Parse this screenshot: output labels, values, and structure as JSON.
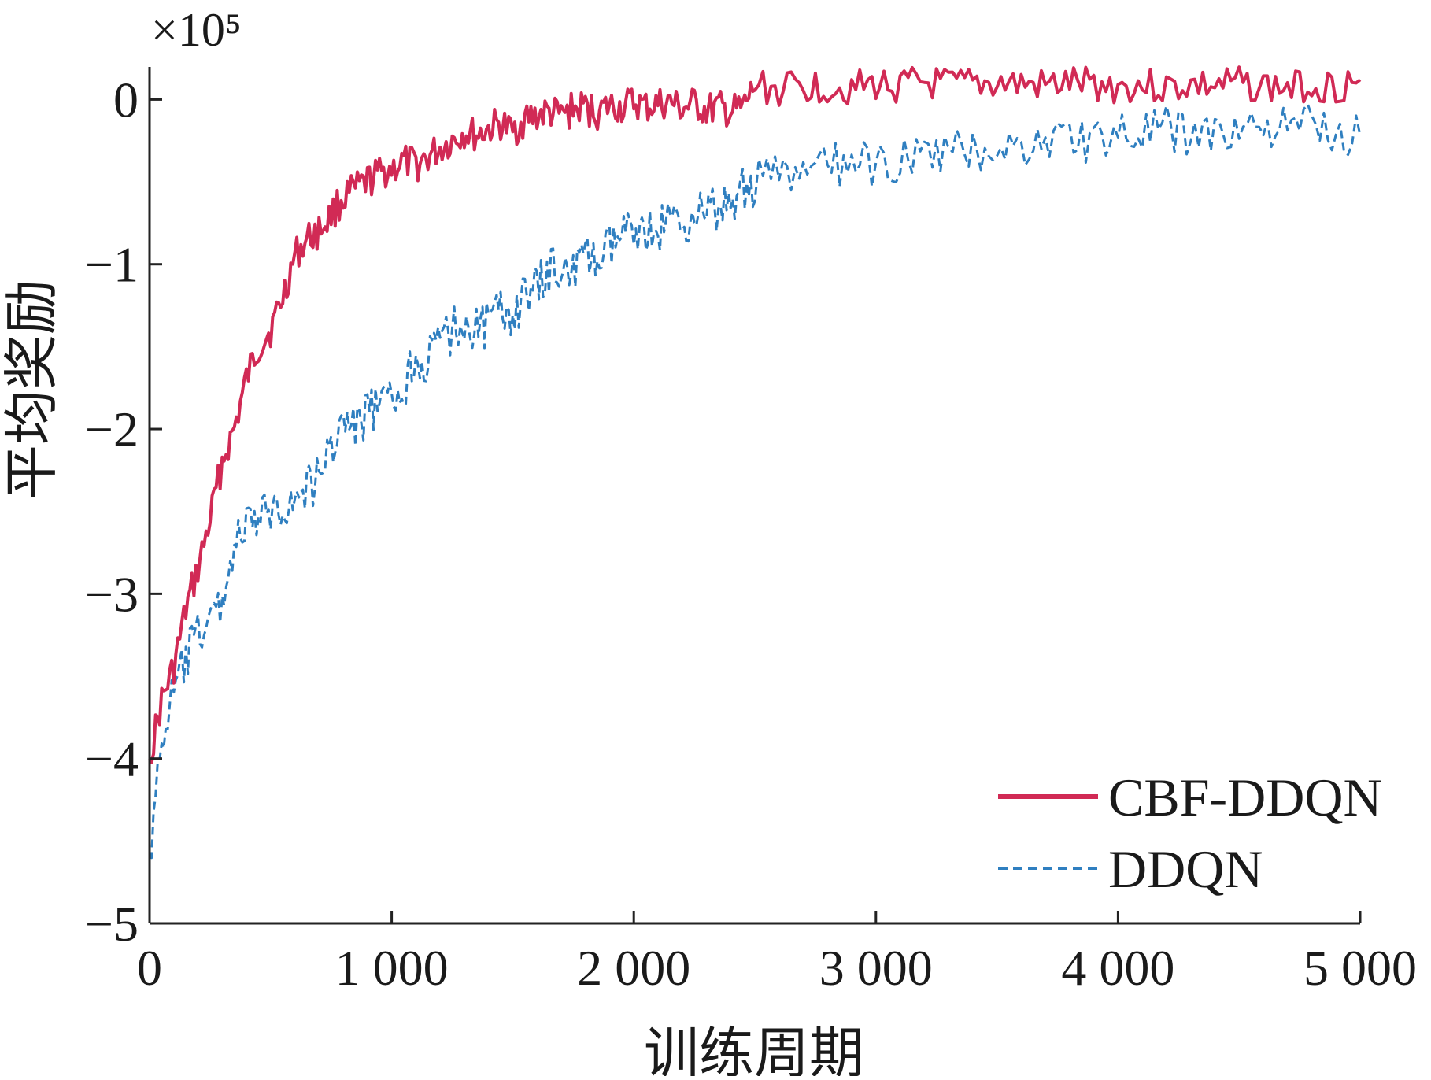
{
  "chart_data": {
    "type": "line",
    "title": "",
    "xlabel": "训练周期",
    "ylabel": "平均奖励",
    "y_multiplier_label": "×10⁵",
    "xlim": [
      0,
      5000
    ],
    "ylim": [
      -5,
      0.15
    ],
    "x_ticks": [
      0,
      1000,
      2000,
      3000,
      4000,
      5000
    ],
    "x_tick_labels": [
      "0",
      "1 000",
      "2 000",
      "3 000",
      "4 000",
      "5 000"
    ],
    "y_ticks": [
      0,
      -1,
      -2,
      -3,
      -4,
      -5
    ],
    "y_tick_labels": [
      "0",
      "−1",
      "−2",
      "−3",
      "−4",
      "−5"
    ],
    "grid": false,
    "legend_position": "bottom-right",
    "series": [
      {
        "name": "CBF-DDQN",
        "color": "#d12a55",
        "line_style": "solid",
        "x": [
          0,
          50,
          100,
          150,
          200,
          250,
          300,
          350,
          400,
          450,
          500,
          550,
          600,
          650,
          700,
          750,
          800,
          850,
          900,
          950,
          1000,
          1050,
          1100,
          1150,
          1200,
          1250,
          1300,
          1350,
          1400,
          1450,
          1500,
          1550,
          1600,
          1650,
          1700,
          1750,
          1800,
          1850,
          1900,
          1950,
          2000,
          2050,
          2100,
          2150,
          2200,
          2250,
          2300,
          2350,
          2400,
          2450,
          2500,
          2600,
          2700,
          2800,
          2900,
          3000,
          3100,
          3200,
          3300,
          3400,
          3500,
          3600,
          3700,
          3800,
          3900,
          4000,
          4100,
          4200,
          4300,
          4400,
          4500,
          4600,
          4700,
          4800,
          4900,
          5000
        ],
        "values": [
          -4.0,
          -3.65,
          -3.45,
          -3.1,
          -2.85,
          -2.55,
          -2.2,
          -2.0,
          -1.7,
          -1.5,
          -1.4,
          -1.2,
          -0.95,
          -0.85,
          -0.8,
          -0.7,
          -0.6,
          -0.55,
          -0.5,
          -0.45,
          -0.42,
          -0.38,
          -0.4,
          -0.35,
          -0.3,
          -0.25,
          -0.2,
          -0.22,
          -0.18,
          -0.15,
          -0.2,
          -0.12,
          -0.1,
          -0.08,
          -0.1,
          -0.06,
          -0.05,
          -0.08,
          -0.04,
          -0.05,
          -0.02,
          -0.05,
          -0.03,
          -0.02,
          -0.06,
          -0.03,
          -0.07,
          -0.05,
          -0.08,
          -0.06,
          0.08,
          0.06,
          0.08,
          0.08,
          0.07,
          0.09,
          0.08,
          0.1,
          0.08,
          0.09,
          0.1,
          0.09,
          0.08,
          0.1,
          0.09,
          0.08,
          0.09,
          0.07,
          0.09,
          0.08,
          0.1,
          0.08,
          0.07,
          0.09,
          0.08,
          0.12
        ]
      },
      {
        "name": "DDQN",
        "color": "#2f7fc0",
        "line_style": "dashed",
        "x": [
          0,
          50,
          100,
          150,
          200,
          250,
          300,
          350,
          400,
          450,
          500,
          550,
          600,
          650,
          700,
          750,
          800,
          850,
          900,
          950,
          1000,
          1050,
          1100,
          1150,
          1200,
          1250,
          1300,
          1350,
          1400,
          1450,
          1500,
          1550,
          1600,
          1650,
          1700,
          1750,
          1800,
          1850,
          1900,
          1950,
          2000,
          2050,
          2100,
          2150,
          2200,
          2250,
          2300,
          2350,
          2400,
          2450,
          2500,
          2600,
          2700,
          2800,
          2900,
          3000,
          3100,
          3200,
          3300,
          3400,
          3500,
          3600,
          3700,
          3800,
          3900,
          4000,
          4100,
          4200,
          4300,
          4400,
          4500,
          4600,
          4700,
          4800,
          4900,
          5000
        ],
        "values": [
          -4.6,
          -3.9,
          -3.6,
          -3.4,
          -3.25,
          -3.15,
          -3.05,
          -2.7,
          -2.6,
          -2.55,
          -2.5,
          -2.45,
          -2.45,
          -2.35,
          -2.3,
          -2.1,
          -1.95,
          -2.0,
          -1.9,
          -1.85,
          -1.85,
          -1.75,
          -1.55,
          -1.6,
          -1.45,
          -1.4,
          -1.35,
          -1.4,
          -1.35,
          -1.3,
          -1.3,
          -1.2,
          -1.15,
          -1.05,
          -1.0,
          -1.05,
          -0.95,
          -1.0,
          -0.9,
          -0.85,
          -0.75,
          -0.8,
          -0.8,
          -0.72,
          -0.75,
          -0.7,
          -0.65,
          -0.7,
          -0.62,
          -0.55,
          -0.5,
          -0.48,
          -0.45,
          -0.42,
          -0.38,
          -0.42,
          -0.35,
          -0.38,
          -0.32,
          -0.3,
          -0.28,
          -0.3,
          -0.25,
          -0.22,
          -0.25,
          -0.2,
          -0.22,
          -0.18,
          -0.2,
          -0.22,
          -0.18,
          -0.16,
          -0.2,
          -0.15,
          -0.18,
          -0.22
        ]
      }
    ]
  }
}
